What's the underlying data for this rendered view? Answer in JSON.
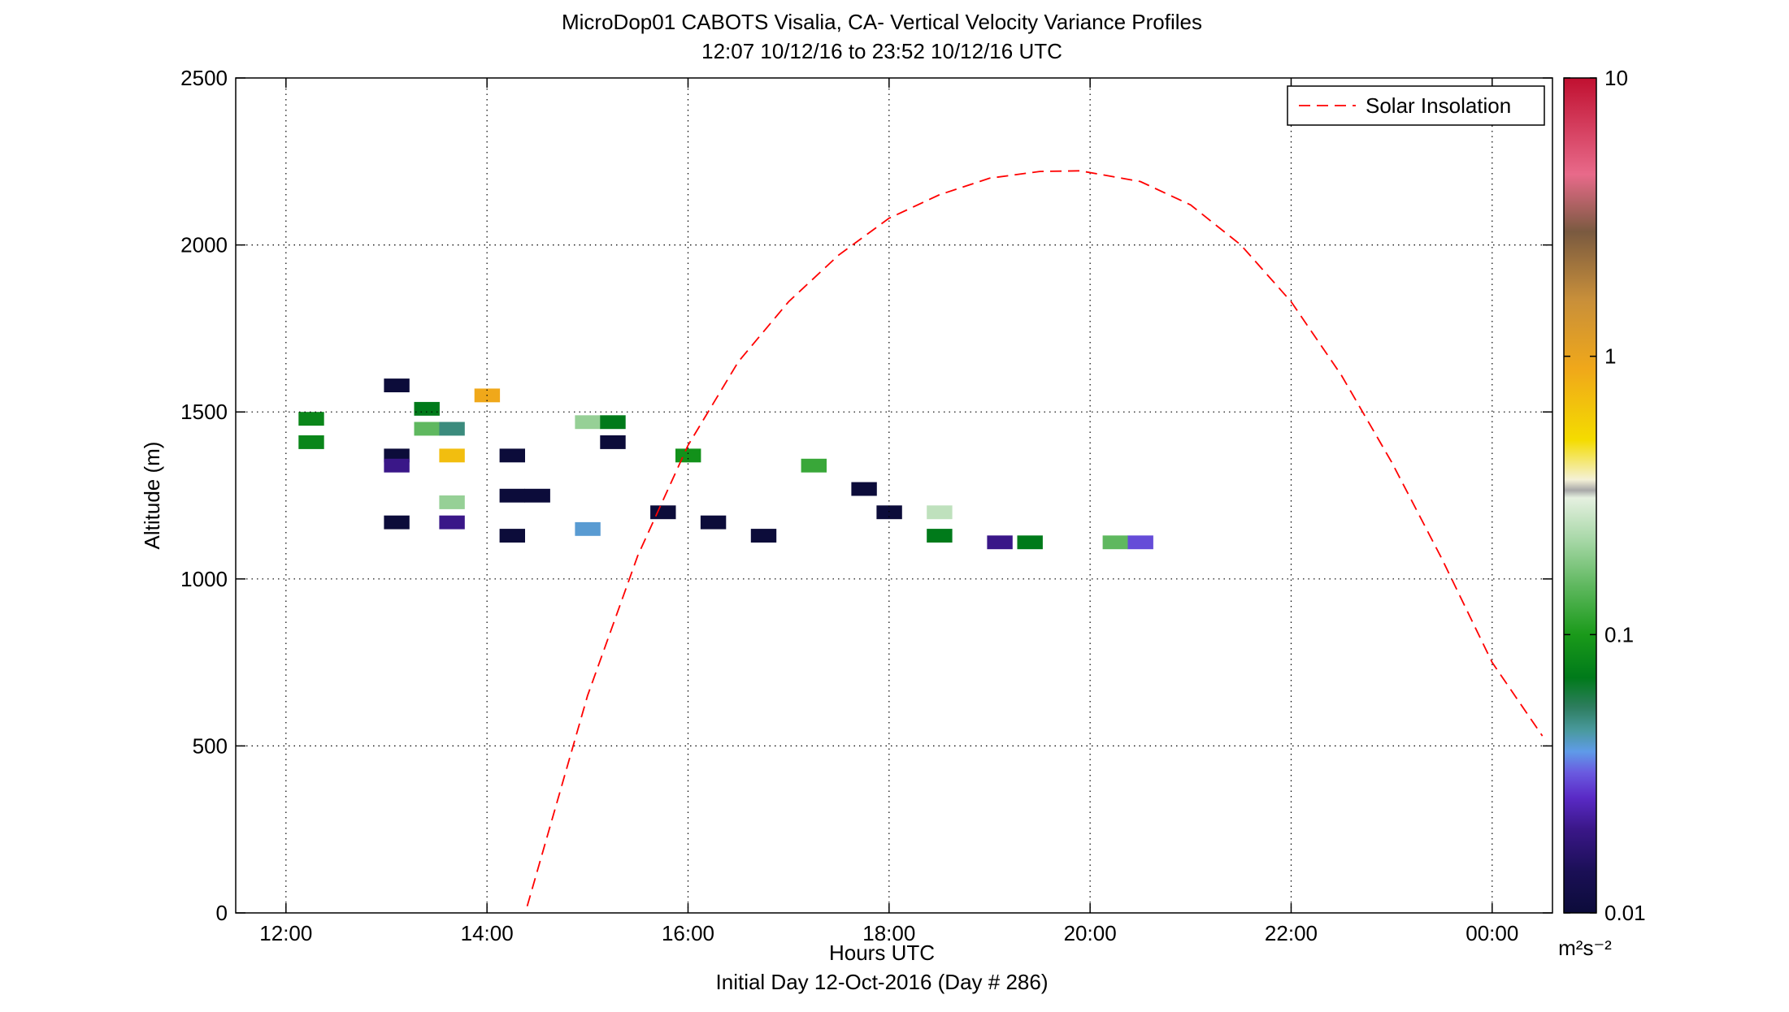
{
  "chart_data": {
    "type": "heatmap",
    "title": "MicroDop01 CABOTS Visalia, CA- Vertical Velocity Variance Profiles",
    "subtitle": "12:07 10/12/16 to 23:52 10/12/16  UTC",
    "xlabel": "Hours UTC",
    "xlabel2": "Initial Day 12-Oct-2016 (Day # 286)",
    "ylabel": "Altitude (m)",
    "x_unit": "hours UTC",
    "xlim": [
      11.5,
      24.6
    ],
    "ylim": [
      0,
      2500
    ],
    "x_ticks": [
      {
        "value": 12,
        "label": "12:00"
      },
      {
        "value": 14,
        "label": "14:00"
      },
      {
        "value": 16,
        "label": "16:00"
      },
      {
        "value": 18,
        "label": "18:00"
      },
      {
        "value": 20,
        "label": "20:00"
      },
      {
        "value": 22,
        "label": "22:00"
      },
      {
        "value": 24,
        "label": "00:00"
      }
    ],
    "y_ticks": [
      {
        "value": 0,
        "label": "0"
      },
      {
        "value": 500,
        "label": "500"
      },
      {
        "value": 1000,
        "label": "1000"
      },
      {
        "value": 1500,
        "label": "1500"
      },
      {
        "value": 2000,
        "label": "2000"
      },
      {
        "value": 2500,
        "label": "2500"
      }
    ],
    "grid": true,
    "grid_style": "dotted",
    "colorbar": {
      "scale": "log",
      "range": [
        0.01,
        10
      ],
      "unit_label": "m²s⁻²",
      "ticks": [
        {
          "value": 0.01,
          "label": "0.01"
        },
        {
          "value": 0.1,
          "label": "0.1"
        },
        {
          "value": 1,
          "label": "1"
        },
        {
          "value": 10,
          "label": "10"
        }
      ],
      "stops": [
        {
          "v": 0.01,
          "color": "#0c0c3a"
        },
        {
          "v": 0.014,
          "color": "#1a0f55"
        },
        {
          "v": 0.02,
          "color": "#3a1788"
        },
        {
          "v": 0.026,
          "color": "#5a2ac6"
        },
        {
          "v": 0.032,
          "color": "#6a5be0"
        },
        {
          "v": 0.038,
          "color": "#5f9be8"
        },
        {
          "v": 0.045,
          "color": "#4a9aa0"
        },
        {
          "v": 0.055,
          "color": "#2d7d5e"
        },
        {
          "v": 0.07,
          "color": "#007a1a"
        },
        {
          "v": 0.1,
          "color": "#1a9a1a"
        },
        {
          "v": 0.15,
          "color": "#5fb85f"
        },
        {
          "v": 0.22,
          "color": "#a8d8a8"
        },
        {
          "v": 0.31,
          "color": "#e5f0e0"
        },
        {
          "v": 0.33,
          "color": "#a8a8a8"
        },
        {
          "v": 0.36,
          "color": "#f4f1d6"
        },
        {
          "v": 0.5,
          "color": "#f4dc00"
        },
        {
          "v": 0.9,
          "color": "#f0a81a"
        },
        {
          "v": 1.6,
          "color": "#c88f3a"
        },
        {
          "v": 2.8,
          "color": "#7a5a40"
        },
        {
          "v": 4.5,
          "color": "#e86a8a"
        },
        {
          "v": 10.0,
          "color": "#c01030"
        }
      ]
    },
    "series": [
      {
        "name": "Solar Insolation",
        "style": "dashed",
        "color": "#ff0000",
        "x": [
          14.4,
          15.0,
          15.5,
          16.0,
          16.5,
          17.0,
          17.5,
          18.0,
          18.5,
          19.0,
          19.5,
          19.9,
          20.5,
          21.0,
          21.5,
          22.0,
          22.5,
          23.0,
          23.5,
          24.0,
          24.5
        ],
        "y": [
          20,
          650,
          1070,
          1400,
          1650,
          1830,
          1970,
          2080,
          2150,
          2200,
          2220,
          2222,
          2190,
          2120,
          2000,
          1830,
          1610,
          1350,
          1060,
          750,
          530
        ]
      }
    ],
    "cell_width_hours": 0.25,
    "cell_height_m": 40,
    "cells": [
      {
        "t": 12.25,
        "z": 1480,
        "v": 0.08
      },
      {
        "t": 12.25,
        "z": 1410,
        "v": 0.08
      },
      {
        "t": 13.1,
        "z": 1580,
        "v": 0.01
      },
      {
        "t": 13.4,
        "z": 1510,
        "v": 0.07
      },
      {
        "t": 13.4,
        "z": 1450,
        "v": 0.15
      },
      {
        "t": 13.65,
        "z": 1450,
        "v": 0.05
      },
      {
        "t": 14.0,
        "z": 1550,
        "v": 0.9
      },
      {
        "t": 13.65,
        "z": 1370,
        "v": 0.7
      },
      {
        "t": 13.1,
        "z": 1370,
        "v": 0.01
      },
      {
        "t": 13.1,
        "z": 1340,
        "v": 0.02
      },
      {
        "t": 14.25,
        "z": 1370,
        "v": 0.01
      },
      {
        "t": 13.65,
        "z": 1230,
        "v": 0.2
      },
      {
        "t": 13.65,
        "z": 1170,
        "v": 0.02
      },
      {
        "t": 13.1,
        "z": 1170,
        "v": 0.01
      },
      {
        "t": 15.0,
        "z": 1470,
        "v": 0.2
      },
      {
        "t": 15.25,
        "z": 1470,
        "v": 0.07
      },
      {
        "t": 15.25,
        "z": 1410,
        "v": 0.01
      },
      {
        "t": 15.0,
        "z": 1150,
        "v": 0.04
      },
      {
        "t": 16.0,
        "z": 1370,
        "v": 0.09
      },
      {
        "t": 17.25,
        "z": 1340,
        "v": 0.12
      },
      {
        "t": 17.75,
        "z": 1270,
        "v": 0.01
      },
      {
        "t": 18.0,
        "z": 1200,
        "v": 0.01
      },
      {
        "t": 18.5,
        "z": 1200,
        "v": 0.25
      },
      {
        "t": 18.5,
        "z": 1130,
        "v": 0.07
      },
      {
        "t": 19.1,
        "z": 1110,
        "v": 0.02
      },
      {
        "t": 19.4,
        "z": 1110,
        "v": 0.07
      },
      {
        "t": 20.25,
        "z": 1110,
        "v": 0.15
      },
      {
        "t": 20.5,
        "z": 1110,
        "v": 0.03
      },
      {
        "t": 16.75,
        "z": 1130,
        "v": 0.01
      },
      {
        "t": 16.25,
        "z": 1170,
        "v": 0.01
      },
      {
        "t": 15.75,
        "z": 1200,
        "v": 0.01
      },
      {
        "t": 14.25,
        "z": 1130,
        "v": 0.01
      },
      {
        "t": 14.25,
        "z": 1250,
        "v": 0.01
      },
      {
        "t": 14.5,
        "z": 1250,
        "v": 0.01
      }
    ]
  }
}
